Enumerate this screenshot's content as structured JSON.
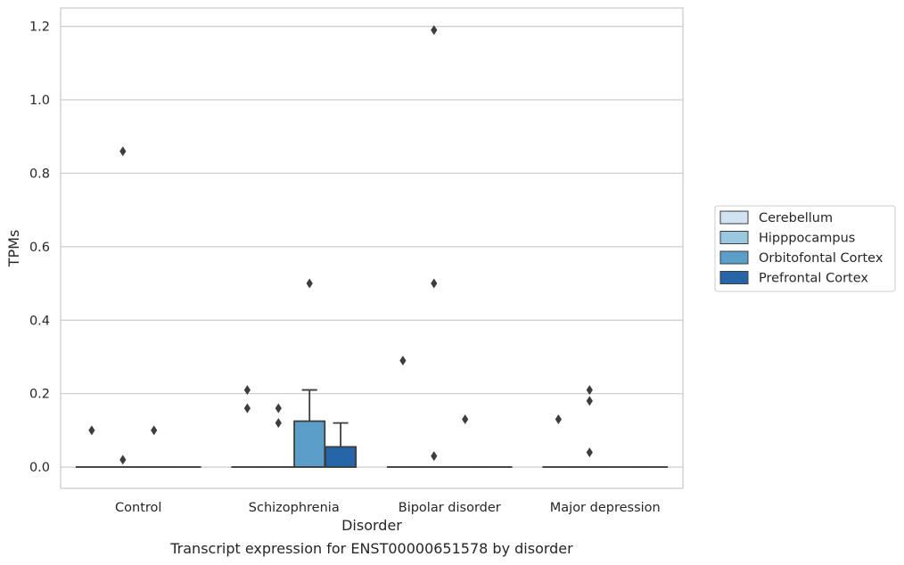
{
  "caption": "Transcript expression for ENST00000651578 by disorder",
  "chart_data": {
    "type": "box",
    "xlabel": "Disorder",
    "ylabel": "TPMs",
    "categories": [
      "Control",
      "Schizophrenia",
      "Bipolar disorder",
      "Major depression"
    ],
    "ylim": [
      -0.058,
      1.25
    ],
    "yticks": [
      0.0,
      0.2,
      0.4,
      0.6,
      0.8,
      1.0,
      1.2
    ],
    "ytick_labels": [
      "0.0",
      "0.2",
      "0.4",
      "0.6",
      "0.8",
      "1.0",
      "1.2"
    ],
    "grid": true,
    "legend_position": "right",
    "series": [
      {
        "name": "Cerebellum",
        "color": "#d1e2f2",
        "boxes": [
          {
            "category": "Control",
            "q1": 0,
            "median": 0,
            "q3": 0,
            "whisker_low": 0,
            "whisker_high": 0,
            "outliers": [
              0.1
            ]
          },
          {
            "category": "Schizophrenia",
            "q1": 0,
            "median": 0,
            "q3": 0,
            "whisker_low": 0,
            "whisker_high": 0,
            "outliers": [
              0.21,
              0.16
            ]
          },
          {
            "category": "Bipolar disorder",
            "q1": 0,
            "median": 0,
            "q3": 0,
            "whisker_low": 0,
            "whisker_high": 0,
            "outliers": [
              0.29
            ]
          },
          {
            "category": "Major depression",
            "q1": 0,
            "median": 0,
            "q3": 0,
            "whisker_low": 0,
            "whisker_high": 0,
            "outliers": [
              0.13
            ]
          }
        ]
      },
      {
        "name": "Hipppocampus",
        "color": "#9ac8e0",
        "boxes": [
          {
            "category": "Control",
            "q1": 0,
            "median": 0,
            "q3": 0,
            "whisker_low": 0,
            "whisker_high": 0,
            "outliers": [
              0.86,
              0.02
            ]
          },
          {
            "category": "Schizophrenia",
            "q1": 0,
            "median": 0,
            "q3": 0,
            "whisker_low": 0,
            "whisker_high": 0,
            "outliers": [
              0.16,
              0.12
            ]
          },
          {
            "category": "Bipolar disorder",
            "q1": 0,
            "median": 0,
            "q3": 0,
            "whisker_low": 0,
            "whisker_high": 0,
            "outliers": [
              1.19,
              0.5,
              0.03
            ]
          },
          {
            "category": "Major depression",
            "q1": 0,
            "median": 0,
            "q3": 0,
            "whisker_low": 0,
            "whisker_high": 0,
            "outliers": [
              0.21,
              0.18,
              0.04
            ]
          }
        ]
      },
      {
        "name": "Orbitofontal Cortex",
        "color": "#5a9ec9",
        "boxes": [
          {
            "category": "Control",
            "q1": 0,
            "median": 0,
            "q3": 0,
            "whisker_low": 0,
            "whisker_high": 0,
            "outliers": [
              0.1
            ]
          },
          {
            "category": "Schizophrenia",
            "q1": 0,
            "median": 0,
            "q3": 0.125,
            "whisker_low": 0,
            "whisker_high": 0.21,
            "outliers": [
              0.5
            ]
          },
          {
            "category": "Bipolar disorder",
            "q1": 0,
            "median": 0,
            "q3": 0,
            "whisker_low": 0,
            "whisker_high": 0,
            "outliers": [
              0.13
            ]
          },
          {
            "category": "Major depression",
            "q1": 0,
            "median": 0,
            "q3": 0,
            "whisker_low": 0,
            "whisker_high": 0,
            "outliers": []
          }
        ]
      },
      {
        "name": "Prefrontal Cortex",
        "color": "#2666a8",
        "boxes": [
          {
            "category": "Control",
            "q1": 0,
            "median": 0,
            "q3": 0,
            "whisker_low": 0,
            "whisker_high": 0,
            "outliers": []
          },
          {
            "category": "Schizophrenia",
            "q1": 0,
            "median": 0,
            "q3": 0.055,
            "whisker_low": 0,
            "whisker_high": 0.12,
            "outliers": []
          },
          {
            "category": "Bipolar disorder",
            "q1": 0,
            "median": 0,
            "q3": 0,
            "whisker_low": 0,
            "whisker_high": 0,
            "outliers": []
          },
          {
            "category": "Major depression",
            "q1": 0,
            "median": 0,
            "q3": 0,
            "whisker_low": 0,
            "whisker_high": 0,
            "outliers": []
          }
        ]
      }
    ]
  }
}
